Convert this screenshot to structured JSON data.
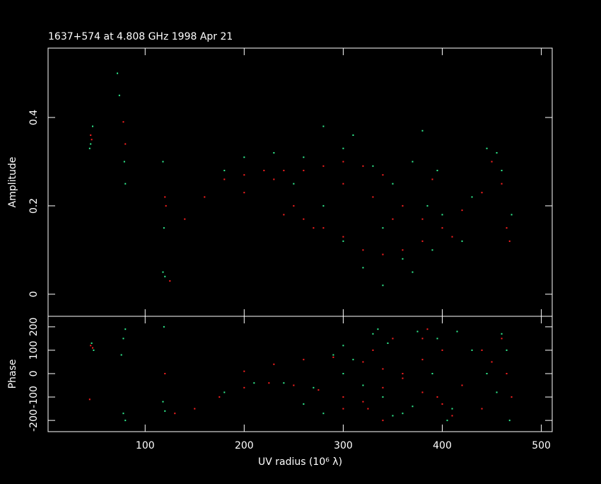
{
  "chart_data": [
    {
      "type": "scatter",
      "title": "1637+574 at 4.808 GHz 1998 Apr 21",
      "y_label": "Amplitude",
      "xlim": [
        2,
        511
      ],
      "ylim": [
        -0.05,
        0.557
      ],
      "xticks": [
        100,
        200,
        300,
        400,
        500
      ],
      "yticks": [
        0,
        0.2,
        0.4
      ],
      "series": [
        {
          "color": "#ff2020",
          "x": [
            45,
            46,
            78,
            80,
            120,
            121,
            125,
            140,
            160,
            180,
            200,
            220,
            240,
            260,
            280,
            300,
            320,
            340,
            240,
            260,
            280,
            300,
            320,
            340,
            360,
            380,
            400,
            420,
            440,
            450,
            460,
            465,
            468,
            360,
            380,
            390,
            410,
            300,
            330,
            350,
            250,
            270,
            200,
            230
          ],
          "values": [
            0.36,
            0.35,
            0.39,
            0.34,
            0.22,
            0.2,
            0.03,
            0.17,
            0.22,
            0.26,
            0.27,
            0.28,
            0.28,
            0.28,
            0.29,
            0.3,
            0.29,
            0.27,
            0.18,
            0.17,
            0.15,
            0.13,
            0.1,
            0.09,
            0.1,
            0.12,
            0.15,
            0.19,
            0.23,
            0.3,
            0.25,
            0.15,
            0.12,
            0.2,
            0.17,
            0.26,
            0.13,
            0.25,
            0.22,
            0.17,
            0.2,
            0.15,
            0.23,
            0.26
          ]
        },
        {
          "color": "#30f090",
          "x": [
            44,
            45,
            47,
            72,
            74,
            79,
            80,
            118,
            119,
            118,
            120,
            180,
            200,
            230,
            260,
            280,
            300,
            310,
            330,
            350,
            370,
            380,
            385,
            395,
            400,
            420,
            430,
            445,
            455,
            460,
            470,
            340,
            360,
            370,
            390,
            300,
            320,
            340,
            280,
            250
          ],
          "values": [
            0.33,
            0.34,
            0.38,
            0.5,
            0.45,
            0.3,
            0.25,
            0.3,
            0.15,
            0.05,
            0.04,
            0.28,
            0.31,
            0.32,
            0.31,
            0.38,
            0.33,
            0.36,
            0.29,
            0.25,
            0.3,
            0.37,
            0.2,
            0.28,
            0.18,
            0.12,
            0.22,
            0.33,
            0.32,
            0.28,
            0.18,
            0.15,
            0.08,
            0.05,
            0.1,
            0.12,
            0.06,
            0.02,
            0.2,
            0.25
          ]
        }
      ]
    },
    {
      "type": "scatter",
      "y_label": "Phase",
      "x_label": "UV radius  (10⁶ λ)",
      "xlim": [
        2,
        511
      ],
      "ylim": [
        -248,
        245
      ],
      "xticks": [
        100,
        200,
        300,
        400,
        500
      ],
      "yticks": [
        -200,
        -100,
        0,
        100,
        200
      ],
      "series": [
        {
          "color": "#ff2020",
          "x": [
            45,
            47,
            44,
            120,
            130,
            150,
            175,
            200,
            225,
            250,
            275,
            300,
            325,
            340,
            200,
            230,
            260,
            290,
            320,
            340,
            360,
            380,
            400,
            410,
            380,
            385,
            395,
            400,
            420,
            440,
            450,
            460,
            465,
            470,
            300,
            320,
            340,
            360,
            380,
            330,
            350,
            440
          ],
          "values": [
            120,
            110,
            -110,
            0,
            -170,
            -150,
            -100,
            -60,
            -40,
            -50,
            -70,
            -100,
            -150,
            -200,
            10,
            40,
            60,
            70,
            50,
            20,
            -20,
            -80,
            -130,
            -180,
            150,
            190,
            -100,
            100,
            -50,
            -150,
            50,
            150,
            0,
            -100,
            -150,
            -120,
            -60,
            0,
            60,
            100,
            150,
            100
          ]
        },
        {
          "color": "#30f090",
          "x": [
            46,
            48,
            76,
            78,
            80,
            78,
            80,
            118,
            120,
            119,
            180,
            210,
            240,
            270,
            290,
            310,
            330,
            335,
            345,
            360,
            375,
            390,
            395,
            405,
            410,
            415,
            430,
            445,
            455,
            460,
            465,
            468,
            300,
            320,
            340,
            350,
            370,
            300,
            260,
            280
          ],
          "values": [
            130,
            100,
            80,
            150,
            190,
            -170,
            -200,
            -120,
            -160,
            200,
            -80,
            -40,
            -40,
            -60,
            80,
            60,
            170,
            190,
            130,
            -170,
            180,
            0,
            150,
            -200,
            -150,
            180,
            100,
            0,
            -80,
            170,
            100,
            -200,
            0,
            -50,
            -100,
            -180,
            -140,
            120,
            -130,
            -170
          ]
        }
      ]
    }
  ]
}
